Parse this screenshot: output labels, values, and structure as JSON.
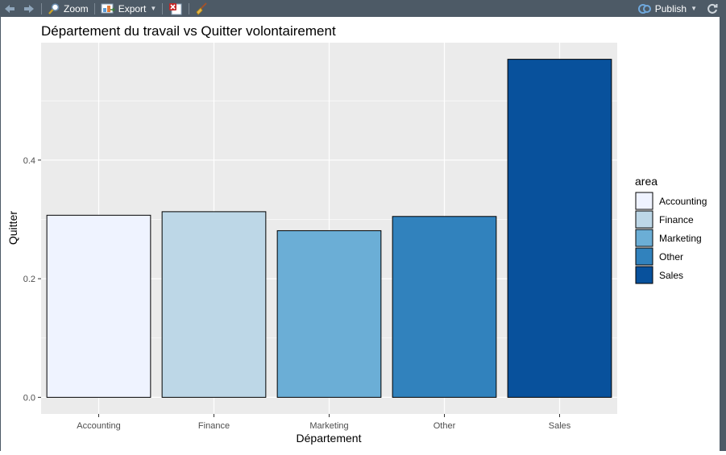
{
  "toolbar": {
    "zoom_label": "Zoom",
    "export_label": "Export",
    "publish_label": "Publish",
    "icons": [
      "back-arrow-icon",
      "forward-arrow-icon",
      "zoom-magnifier-icon",
      "export-image-icon",
      "remove-plot-icon",
      "broom-clear-icon",
      "publish-icon",
      "refresh-icon"
    ]
  },
  "colors": {
    "panel_bg": "#ebebeb",
    "grid": "#ffffff",
    "bar_outline": "#000000"
  },
  "chart_data": {
    "type": "bar",
    "title": "Département du travail vs Quitter volontairement",
    "xlabel": "Département",
    "ylabel": "Quitter",
    "categories": [
      "Accounting",
      "Finance",
      "Marketing",
      "Other",
      "Sales"
    ],
    "values": [
      0.307,
      0.313,
      0.281,
      0.305,
      0.57
    ],
    "colors": [
      "#eff3ff",
      "#bdd7e7",
      "#6baed6",
      "#3182bd",
      "#08519c"
    ],
    "ylim": [
      -0.028,
      0.598
    ],
    "yticks": [
      0.0,
      0.2,
      0.4
    ],
    "ytick_labels": [
      "0.0",
      "0.2",
      "0.4"
    ],
    "grid": true,
    "legend": {
      "title": "area",
      "placement": "right",
      "entries": [
        "Accounting",
        "Finance",
        "Marketing",
        "Other",
        "Sales"
      ]
    }
  }
}
